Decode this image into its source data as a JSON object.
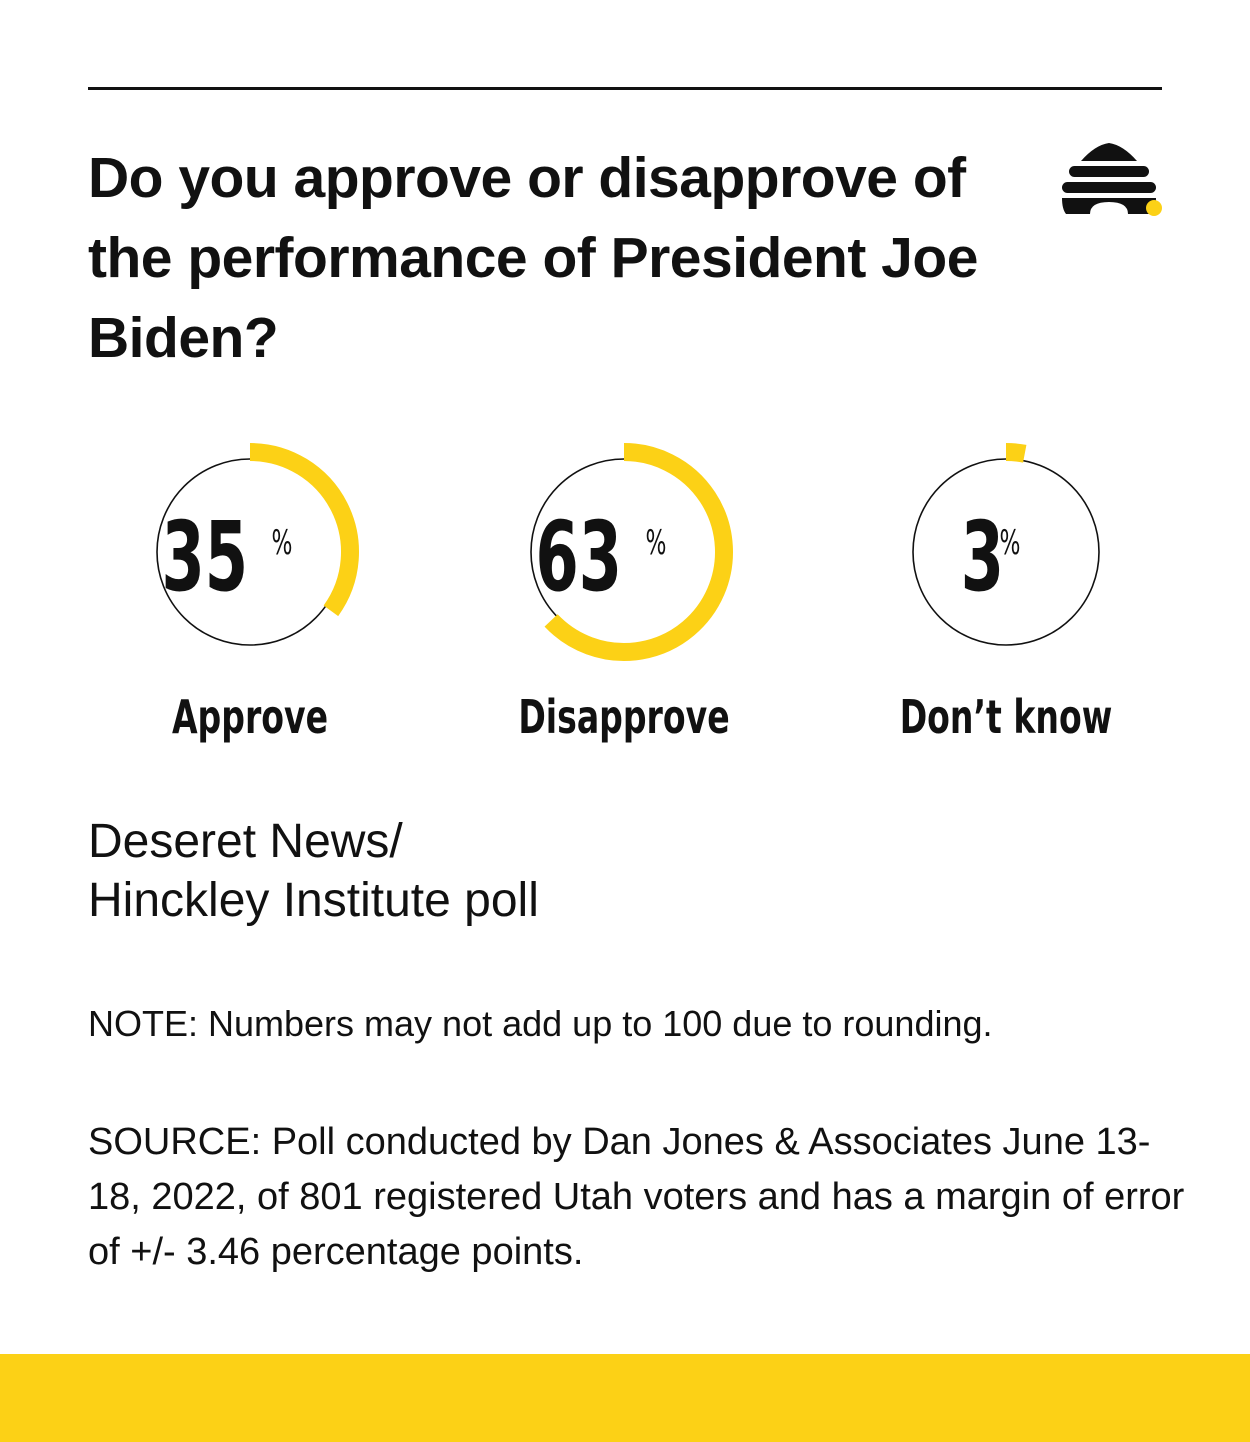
{
  "title": "Do you approve or disapprove of the performance of President Joe Biden?",
  "credit": {
    "line1": "Deseret News/",
    "line2": "Hinckley Institute poll"
  },
  "note": "NOTE: Numbers may not add up to 100 due to rounding.",
  "source": "SOURCE: Poll conducted by Dan Jones & Associates June 13-18, 2022, of 801 registered Utah voters and has a margin of error of +/- 3.46 percentage points.",
  "colors": {
    "accent": "#FCD116",
    "ink": "#111111",
    "background": "#FFFFFF"
  },
  "logo_icon": "beehive-icon",
  "chart_data": {
    "type": "pie",
    "series": [
      {
        "label": "Approve",
        "value": 35,
        "display": "35",
        "unit": "%"
      },
      {
        "label": "Disapprove",
        "value": 63,
        "display": "63",
        "unit": "%"
      },
      {
        "label": "Don’t know",
        "value": 3,
        "display": "3",
        "unit": "%"
      }
    ],
    "max": 100
  }
}
